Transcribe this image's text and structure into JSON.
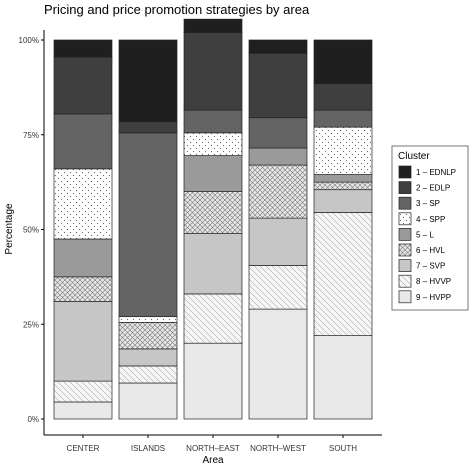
{
  "chart_data": {
    "type": "bar",
    "stacked": true,
    "title": "Pricing and price promotion strategies by area",
    "xlabel": "Area",
    "ylabel": "Percentage",
    "ylim": [
      0,
      1
    ],
    "yticks": [
      "0%",
      "25%",
      "50%",
      "75%",
      "100%"
    ],
    "categories": [
      "CENTER",
      "ISLANDS",
      "NORTH–EAST",
      "NORTH–WEST",
      "SOUTH"
    ],
    "legend": {
      "title": "Cluster",
      "position": "right"
    },
    "series": [
      {
        "name": "1 – EDNLP",
        "fill": "#1f1f1f",
        "pattern": "solid",
        "values": [
          0.045,
          0.215,
          0.035,
          0.035,
          0.115
        ]
      },
      {
        "name": "2 – EDLP",
        "fill": "#3f3f3f",
        "pattern": "solid",
        "values": [
          0.15,
          0.03,
          0.205,
          0.17,
          0.07
        ]
      },
      {
        "name": "3 – SP",
        "fill": "#646464",
        "pattern": "solid",
        "values": [
          0.145,
          0.485,
          0.06,
          0.08,
          0.045
        ]
      },
      {
        "name": "4 – SPP",
        "fill": "#ffffff",
        "pattern": "dots",
        "values": [
          0.185,
          0.015,
          0.06,
          0.0,
          0.125
        ]
      },
      {
        "name": "5 – L",
        "fill": "#9a9a9a",
        "pattern": "solid",
        "values": [
          0.1,
          0.0,
          0.095,
          0.045,
          0.02
        ]
      },
      {
        "name": "6 – HVL",
        "fill": "#e2e2e2",
        "pattern": "cross",
        "values": [
          0.065,
          0.07,
          0.11,
          0.14,
          0.02
        ]
      },
      {
        "name": "7 – SVP",
        "fill": "#c6c6c6",
        "pattern": "solid",
        "values": [
          0.21,
          0.045,
          0.16,
          0.125,
          0.06
        ]
      },
      {
        "name": "8 – HVVP",
        "fill": "#f4f4f4",
        "pattern": "hatch",
        "values": [
          0.055,
          0.045,
          0.13,
          0.115,
          0.325
        ]
      },
      {
        "name": "9 – HVPP",
        "fill": "#e8e8e8",
        "pattern": "solid",
        "values": [
          0.045,
          0.095,
          0.2,
          0.29,
          0.22
        ]
      }
    ]
  }
}
